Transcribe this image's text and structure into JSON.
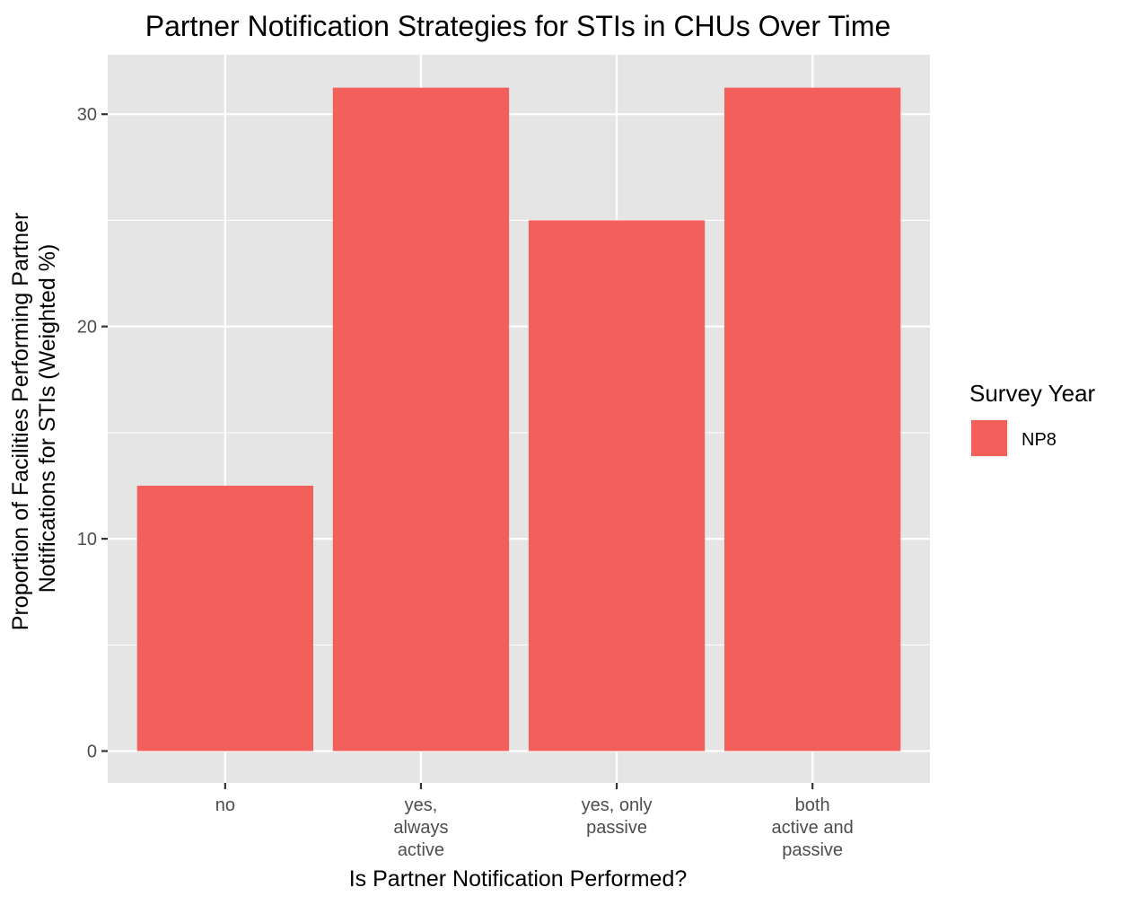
{
  "chart_data": {
    "type": "bar",
    "title": "Partner Notification Strategies for STIs in CHUs Over Time",
    "xlabel": "Is Partner Notification Performed?",
    "ylabel_lines": [
      "Proportion of Facilities Performing Partner",
      "Notifications for STIs (Weighted %)"
    ],
    "categories": [
      [
        "no"
      ],
      [
        "yes,",
        "always",
        "active"
      ],
      [
        "yes, only",
        "passive"
      ],
      [
        "both",
        "active and",
        "passive"
      ]
    ],
    "series": [
      {
        "name": "NP8",
        "values": [
          12.5,
          31.25,
          25.0,
          31.25
        ],
        "color": "#f3605b"
      }
    ],
    "yticks": [
      0,
      10,
      20,
      30
    ],
    "ylim": [
      -1.5,
      32.8
    ],
    "grid": true,
    "panel_background": "#e5e5e5",
    "gridline_color": "#ffffff",
    "legend": {
      "title": "Survey Year",
      "placement": "right"
    }
  }
}
